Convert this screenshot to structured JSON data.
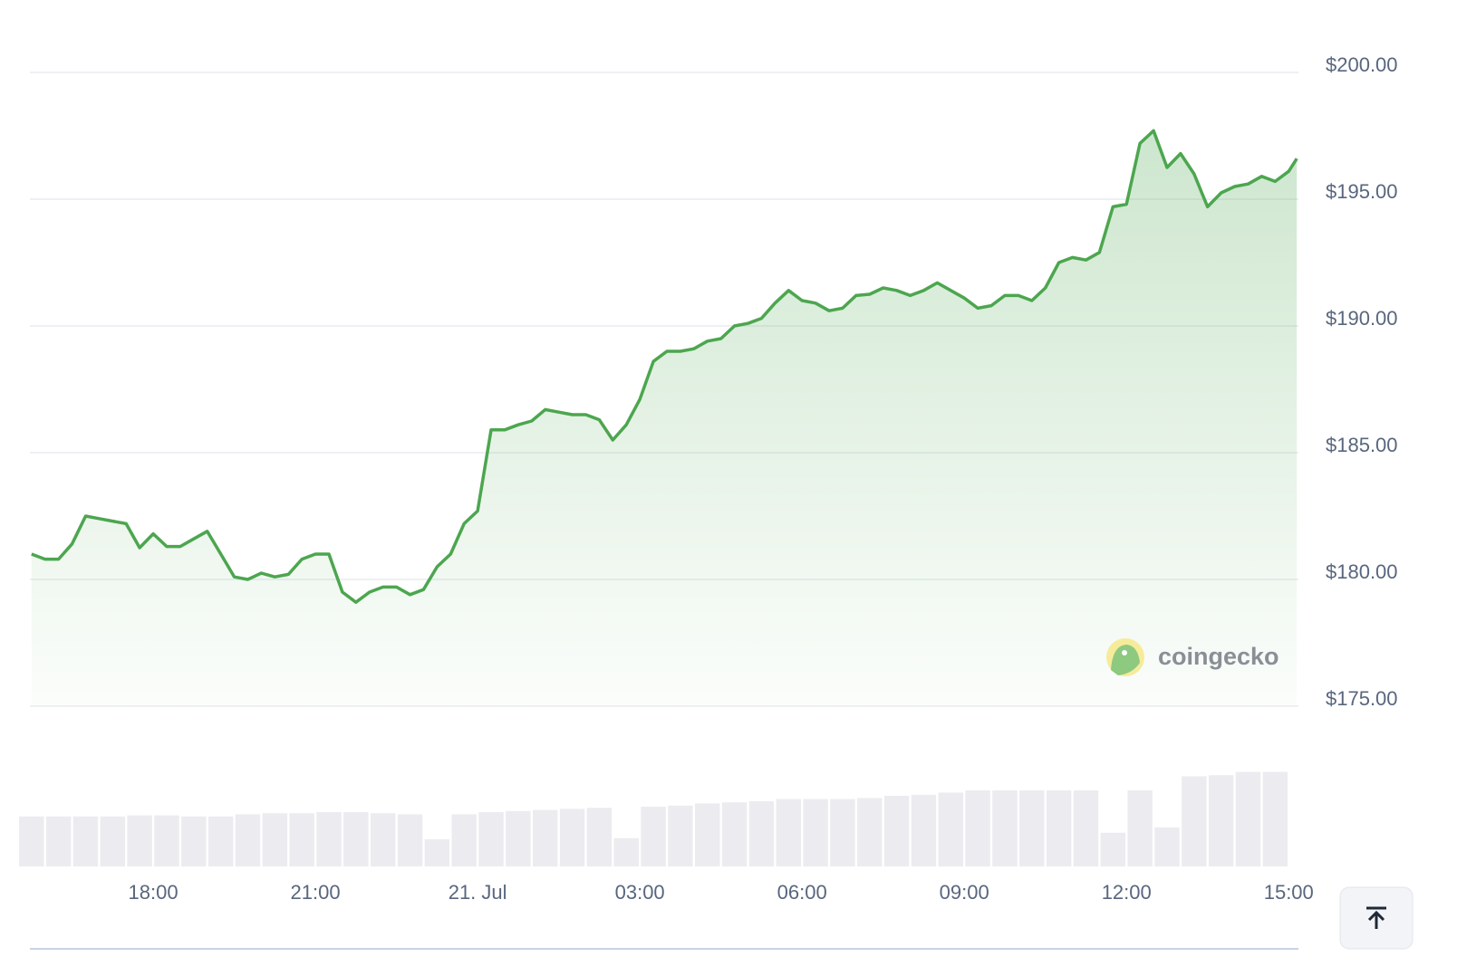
{
  "chart_data": [
    {
      "type": "line",
      "x": [
        15.75,
        16,
        16.25,
        16.5,
        16.75,
        17,
        17.25,
        17.5,
        17.75,
        18,
        18.25,
        18.5,
        18.75,
        19,
        19.25,
        19.5,
        19.75,
        20,
        20.25,
        20.5,
        20.75,
        21,
        21.25,
        21.5,
        21.75,
        22,
        22.25,
        22.5,
        22.75,
        23,
        23.25,
        23.5,
        23.75,
        24,
        24.25,
        24.5,
        24.75,
        25,
        25.25,
        25.5,
        25.75,
        26,
        26.25,
        26.5,
        26.75,
        27,
        27.25,
        27.5,
        27.75,
        28,
        28.25,
        28.5,
        28.75,
        29,
        29.25,
        29.5,
        29.75,
        30,
        30.25,
        30.5,
        30.75,
        31,
        31.25,
        31.5,
        31.75,
        32,
        32.25,
        32.5,
        32.75,
        33,
        33.25,
        33.5,
        33.75,
        34,
        34.25,
        34.5,
        34.75,
        35,
        35.25,
        35.5,
        35.75,
        36,
        36.25,
        36.5,
        36.75,
        37,
        37.25,
        37.5,
        37.75,
        38,
        38.25,
        38.5,
        38.75,
        39,
        39.15
      ],
      "values": [
        181.0,
        180.8,
        180.8,
        181.4,
        182.5,
        182.4,
        182.3,
        182.2,
        181.25,
        181.8,
        181.3,
        181.3,
        181.6,
        181.9,
        181.0,
        180.1,
        180.0,
        180.25,
        180.1,
        180.2,
        180.8,
        181.0,
        181.0,
        179.5,
        179.1,
        179.5,
        179.7,
        179.7,
        179.4,
        179.6,
        180.5,
        181.0,
        182.2,
        182.7,
        185.9,
        185.9,
        186.1,
        186.25,
        186.7,
        186.6,
        186.5,
        186.5,
        186.3,
        185.5,
        186.1,
        187.1,
        188.6,
        189.0,
        189.0,
        189.1,
        189.4,
        189.5,
        190.0,
        190.1,
        190.3,
        190.9,
        191.4,
        191.0,
        190.9,
        190.6,
        190.7,
        191.2,
        191.25,
        191.5,
        191.4,
        191.2,
        191.4,
        191.7,
        191.4,
        191.1,
        190.7,
        190.8,
        191.2,
        191.2,
        191.0,
        191.5,
        192.5,
        192.7,
        192.6,
        192.9,
        194.7,
        194.8,
        197.2,
        197.7,
        196.25,
        196.8,
        196.0,
        194.7,
        195.25,
        195.5,
        195.6,
        195.9,
        195.7,
        196.1,
        196.6
      ],
      "color": "#4ca64f",
      "xlim": [
        15.72,
        39.18
      ],
      "xticks": [
        {
          "value": 18,
          "label": "18:00"
        },
        {
          "value": 21,
          "label": "21:00"
        },
        {
          "value": 24,
          "label": "21. Jul"
        },
        {
          "value": 27,
          "label": "03:00"
        },
        {
          "value": 30,
          "label": "06:00"
        },
        {
          "value": 33,
          "label": "09:00"
        },
        {
          "value": 36,
          "label": "12:00"
        },
        {
          "value": 39,
          "label": "15:00"
        }
      ],
      "ylim": [
        175,
        200
      ],
      "yticks": [
        {
          "value": 175,
          "label": "$175.00"
        },
        {
          "value": 180,
          "label": "$180.00"
        },
        {
          "value": 185,
          "label": "$185.00"
        },
        {
          "value": 190,
          "label": "$190.00"
        },
        {
          "value": 195,
          "label": "$195.00"
        },
        {
          "value": 200,
          "label": "$200.00"
        }
      ],
      "grid": true,
      "watermark": "coingecko"
    },
    {
      "type": "bar",
      "x": [
        15.75,
        16.25,
        16.75,
        17.25,
        17.75,
        18.25,
        18.75,
        19.25,
        19.75,
        20.25,
        20.75,
        21.25,
        21.75,
        22.25,
        22.75,
        23.25,
        23.75,
        24.25,
        24.75,
        25.25,
        25.75,
        26.25,
        26.75,
        27.25,
        27.75,
        28.25,
        28.75,
        29.25,
        29.75,
        30.25,
        30.75,
        31.25,
        31.75,
        32.25,
        32.75,
        33.25,
        33.75,
        34.25,
        34.75,
        35.25,
        35.75,
        36.25,
        36.75,
        37.25,
        37.75,
        38.25,
        38.75
      ],
      "values": [
        46,
        46,
        46,
        46,
        47,
        47,
        46,
        46,
        48,
        49,
        49,
        50,
        50,
        49,
        48,
        25,
        48,
        50,
        51,
        52,
        53,
        54,
        26,
        55,
        56,
        58,
        59,
        60,
        62,
        62,
        62,
        63,
        65,
        66,
        68,
        70,
        70,
        70,
        70,
        70,
        31,
        70,
        36,
        83,
        84,
        87,
        87
      ],
      "color": "#ececf0",
      "xlim": [
        15.72,
        39.18
      ],
      "ylim": [
        0,
        100
      ]
    }
  ]
}
